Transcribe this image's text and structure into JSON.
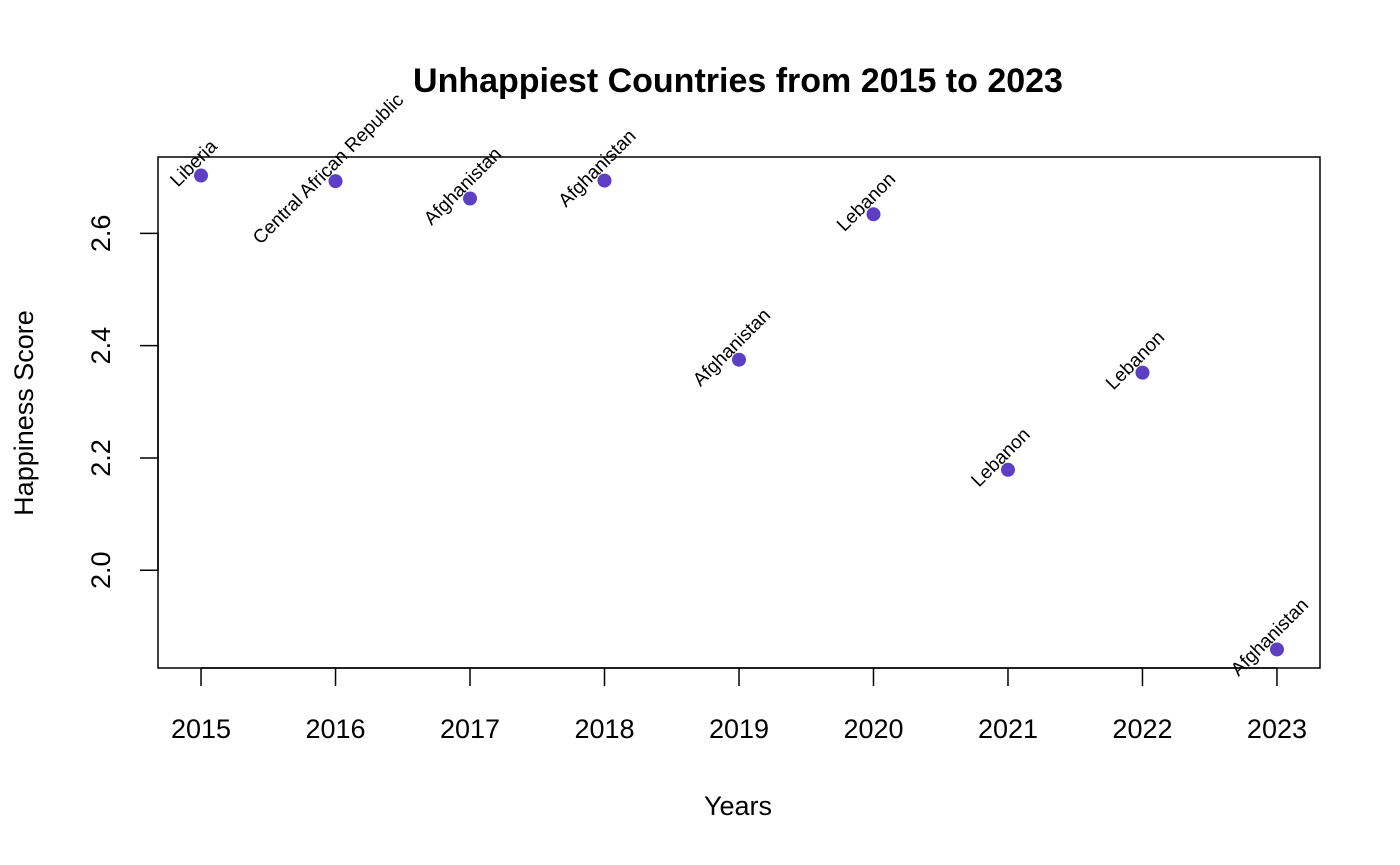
{
  "chart_data": {
    "type": "scatter",
    "title": "Unhappiest Countries from 2015 to 2023",
    "xlabel": "Years",
    "ylabel": "Happiness Score",
    "x": [
      2015,
      2016,
      2017,
      2018,
      2019,
      2020,
      2021,
      2022,
      2023
    ],
    "values": [
      2.703,
      2.693,
      2.662,
      2.694,
      2.375,
      2.634,
      2.179,
      2.352,
      1.859
    ],
    "point_labels": [
      "Liberia",
      "Central African Republic",
      "Afghanistan",
      "Afghanistan",
      "Afghanistan",
      "Lebanon",
      "Lebanon",
      "Lebanon",
      "Afghanistan"
    ],
    "xticks": [
      "2015",
      "2016",
      "2017",
      "2018",
      "2019",
      "2020",
      "2021",
      "2022",
      "2023"
    ],
    "yticks": [
      "2.0",
      "2.2",
      "2.4",
      "2.6"
    ],
    "xlim": [
      2014.68,
      2023.32
    ],
    "ylim": [
      1.826,
      2.736
    ],
    "grid": false,
    "legend": "none",
    "point_color": "#5d3fc4"
  }
}
